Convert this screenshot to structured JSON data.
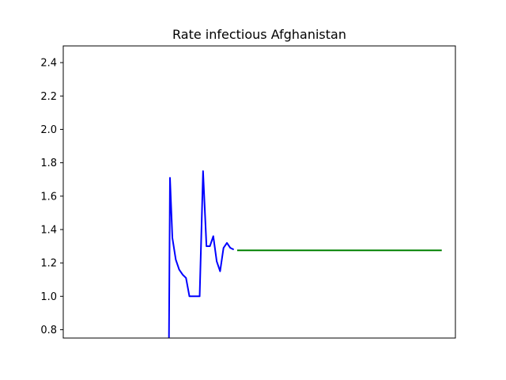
{
  "chart_data": {
    "type": "line",
    "title": "Rate infectious Afghanistan",
    "xlabel": "",
    "ylabel": "",
    "ylim": [
      0.75,
      2.5
    ],
    "xlim": [
      0,
      115
    ],
    "x_ticks_visible": false,
    "yticks": [
      "0.8",
      "1.0",
      "1.2",
      "1.4",
      "1.6",
      "1.8",
      "2.0",
      "2.2",
      "2.4"
    ],
    "grid": false,
    "series": [
      {
        "color": "#0000ff",
        "x": [
          31,
          31.3,
          32,
          33,
          34,
          35,
          36,
          37,
          38,
          39,
          40,
          41,
          42,
          43,
          44,
          45,
          46,
          47,
          48,
          49,
          50
        ],
        "y": [
          0.75,
          1.71,
          1.35,
          1.22,
          1.16,
          1.13,
          1.11,
          1.0,
          1.0,
          1.0,
          1.0,
          1.75,
          1.3,
          1.3,
          1.36,
          1.21,
          1.15,
          1.29,
          1.32,
          1.29,
          1.28
        ]
      },
      {
        "color": "#008000",
        "x": [
          51,
          111
        ],
        "y": [
          1.275,
          1.275
        ]
      }
    ]
  }
}
